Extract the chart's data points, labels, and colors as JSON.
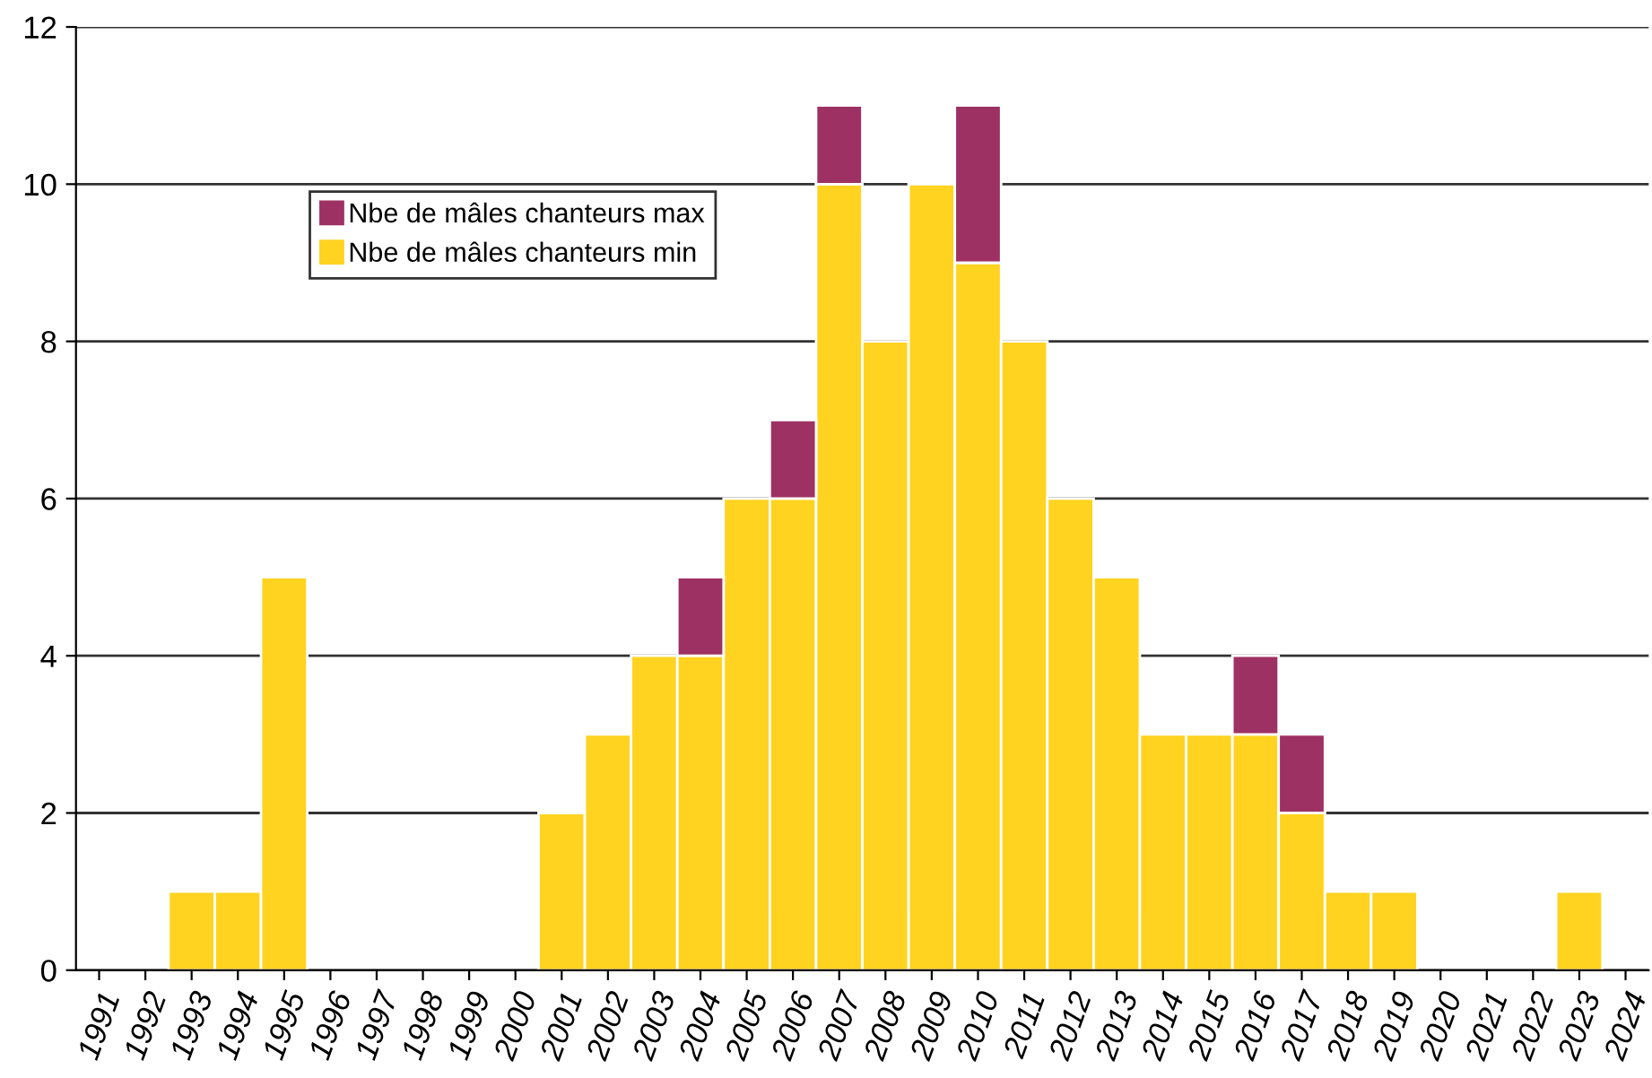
{
  "chart_data": {
    "type": "bar",
    "stacked": true,
    "categories": [
      "1991",
      "1992",
      "1993",
      "1994",
      "1995",
      "1996",
      "1997",
      "1998",
      "1999",
      "2000",
      "2001",
      "2002",
      "2003",
      "2004",
      "2005",
      "2006",
      "2007",
      "2008",
      "2009",
      "2010",
      "2011",
      "2012",
      "2013",
      "2014",
      "2015",
      "2016",
      "2017",
      "2018",
      "2019",
      "2020",
      "2021",
      "2022",
      "2023",
      "2024"
    ],
    "series": [
      {
        "name": "Nbe de mâles chanteurs min",
        "color": "#ffd320",
        "values": [
          0,
          0,
          1,
          1,
          5,
          0,
          0,
          0,
          0,
          0,
          2,
          3,
          4,
          4,
          6,
          6,
          10,
          8,
          10,
          9,
          8,
          6,
          5,
          3,
          3,
          3,
          2,
          1,
          1,
          0,
          0,
          0,
          1,
          0
        ]
      },
      {
        "name": "Nbe de mâles chanteurs max",
        "color": "#9e3163",
        "values": [
          0,
          0,
          0,
          0,
          0,
          0,
          0,
          0,
          0,
          0,
          0,
          0,
          0,
          1,
          0,
          1,
          1,
          0,
          0,
          2,
          0,
          0,
          0,
          0,
          0,
          1,
          1,
          0,
          0,
          0,
          0,
          0,
          0,
          0
        ]
      }
    ],
    "ylim": [
      0,
      12
    ],
    "yticks": [
      0,
      2,
      4,
      6,
      8,
      10,
      12
    ],
    "grid": "y",
    "legend": "top left"
  }
}
